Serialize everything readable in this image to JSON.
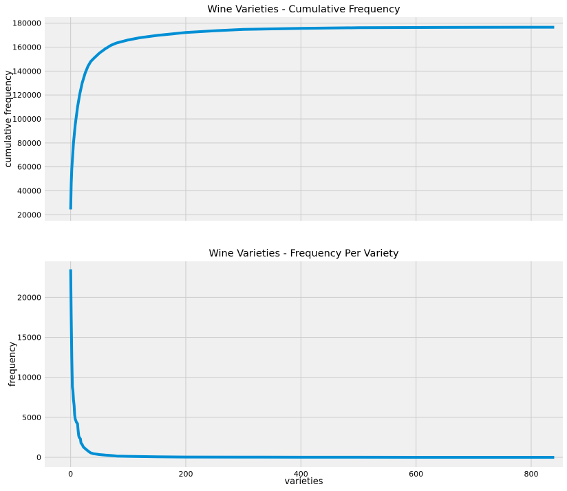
{
  "chart_data": [
    {
      "type": "line",
      "title": "Wine Varieties - Cumulative Frequency",
      "xlabel": "",
      "ylabel": "cumulative frequency",
      "xlim": [
        -45,
        855
      ],
      "ylim": [
        15000,
        185000
      ],
      "xticks": [
        0,
        200,
        400,
        600,
        800
      ],
      "xtick_labels_visible": false,
      "yticks": [
        20000,
        40000,
        60000,
        80000,
        100000,
        120000,
        140000,
        160000,
        180000
      ],
      "grid": true,
      "series": [
        {
          "color": "#008fd5",
          "x": [
            0,
            1,
            2,
            3,
            5,
            8,
            12,
            16,
            20,
            25,
            30,
            35,
            40,
            50,
            60,
            70,
            80,
            100,
            120,
            150,
            200,
            250,
            300,
            400,
            500,
            600,
            700,
            800,
            840
          ],
          "y": [
            24500,
            46000,
            58000,
            66000,
            80000,
            95000,
            110000,
            121000,
            130000,
            138000,
            144000,
            148000,
            150500,
            155000,
            158500,
            161500,
            163500,
            166000,
            167800,
            169800,
            172200,
            173600,
            174800,
            175700,
            176200,
            176400,
            176500,
            176600,
            176600
          ]
        }
      ]
    },
    {
      "type": "line",
      "title": "Wine Varieties - Frequency Per Variety",
      "xlabel": "varieties",
      "ylabel": "frequency",
      "xlim": [
        -45,
        855
      ],
      "ylim": [
        -1200,
        24500
      ],
      "xticks": [
        0,
        200,
        400,
        600,
        800
      ],
      "yticks": [
        0,
        5000,
        10000,
        15000,
        20000
      ],
      "grid": true,
      "series": [
        {
          "color": "#008fd5",
          "x": [
            0,
            1,
            2,
            3,
            4,
            5,
            6,
            7,
            8,
            9,
            10,
            12,
            13,
            14,
            15,
            17,
            18,
            20,
            22,
            25,
            30,
            35,
            40,
            50,
            60,
            70,
            75,
            80,
            100,
            150,
            200,
            300,
            400,
            500,
            600,
            700,
            800,
            840
          ],
          "y": [
            23500,
            17500,
            12500,
            8800,
            8300,
            7200,
            6500,
            5300,
            4800,
            4600,
            4400,
            4200,
            3400,
            2700,
            2500,
            2300,
            1800,
            1600,
            1300,
            1100,
            800,
            550,
            450,
            350,
            280,
            230,
            200,
            160,
            120,
            70,
            40,
            25,
            15,
            10,
            6,
            3,
            1,
            1
          ]
        }
      ]
    }
  ]
}
